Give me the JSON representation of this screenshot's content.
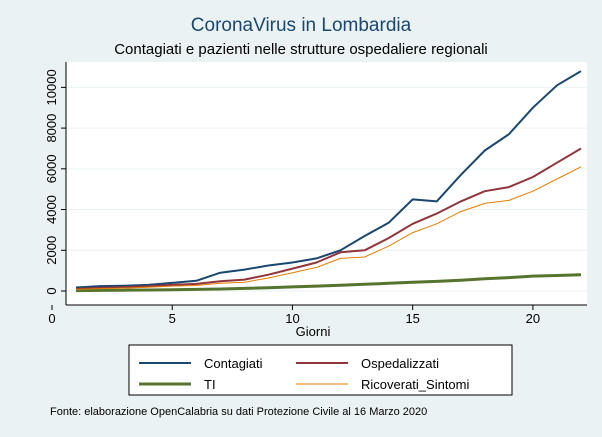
{
  "chart_data": {
    "type": "line",
    "title": "CoronaVirus in Lombardia",
    "subtitle": "Contagiati e pazienti nelle strutture ospedaliere regionali",
    "xlabel": "Giorni",
    "ylabel": "",
    "xlim": [
      0,
      22
    ],
    "ylim": [
      0,
      11000
    ],
    "xticks": [
      0,
      5,
      10,
      15,
      20
    ],
    "yticks": [
      0,
      2000,
      4000,
      6000,
      8000,
      10000
    ],
    "grid": "horizontal",
    "legend_position": "bottom",
    "note": "Fonte: elaborazione OpenCalabria su dati Protezione Civile al 16 Marzo 2020",
    "x": [
      1,
      2,
      3,
      4,
      5,
      6,
      7,
      8,
      9,
      10,
      11,
      12,
      13,
      14,
      15,
      16,
      17,
      18,
      19,
      20,
      21,
      22
    ],
    "series": [
      {
        "name": "Contagiati",
        "color": "#1a476f",
        "width": 2,
        "values": [
          170,
          240,
          260,
          300,
          400,
          500,
          900,
          1050,
          1250,
          1400,
          1600,
          2000,
          2700,
          3350,
          4500,
          4400,
          5700,
          6900,
          7700,
          9000,
          10100,
          10800
        ]
      },
      {
        "name": "Ospedalizzati",
        "color": "#90353b",
        "width": 2,
        "values": [
          100,
          150,
          180,
          230,
          300,
          350,
          480,
          560,
          800,
          1100,
          1400,
          1900,
          2000,
          2600,
          3300,
          3800,
          4400,
          4900,
          5100,
          5600,
          6300,
          7000
        ]
      },
      {
        "name": "TI",
        "color": "#55752f",
        "width": 3,
        "values": [
          20,
          30,
          40,
          50,
          60,
          80,
          100,
          130,
          160,
          200,
          240,
          280,
          330,
          380,
          430,
          470,
          530,
          600,
          660,
          730,
          760,
          800
        ]
      },
      {
        "name": "Ricoverati_Sintomi",
        "color": "#e37e00",
        "width": 1,
        "values": [
          80,
          120,
          140,
          180,
          240,
          270,
          380,
          430,
          640,
          900,
          1160,
          1600,
          1670,
          2200,
          2870,
          3300,
          3900,
          4300,
          4450,
          4900,
          5500,
          6100
        ]
      }
    ]
  }
}
